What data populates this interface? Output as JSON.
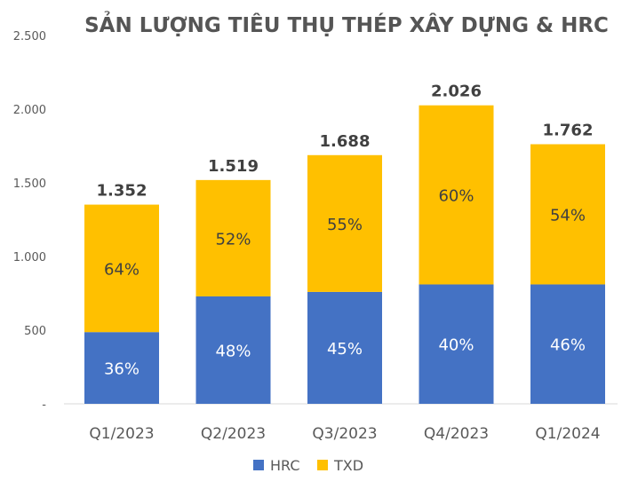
{
  "chart_data": {
    "type": "bar",
    "stacked": true,
    "title": "SẢN LƯỢNG TIÊU THỤ THÉP XÂY DỰNG & HRC",
    "categories": [
      "Q1/2023",
      "Q2/2023",
      "Q3/2023",
      "Q4/2023",
      "Q1/2024"
    ],
    "totals": [
      1352,
      1519,
      1688,
      2026,
      1762
    ],
    "total_labels": [
      "1.352",
      "1.519",
      "1.688",
      "2.026",
      "1.762"
    ],
    "series": [
      {
        "name": "HRC",
        "color": "#4472C4",
        "percent": [
          36,
          48,
          45,
          40,
          46
        ],
        "labels": [
          "36%",
          "48%",
          "45%",
          "40%",
          "46%"
        ]
      },
      {
        "name": "TXD",
        "color": "#FFC000",
        "percent": [
          64,
          52,
          55,
          60,
          54
        ],
        "labels": [
          "64%",
          "52%",
          "55%",
          "60%",
          "54%"
        ]
      }
    ],
    "ylim": [
      0,
      2500
    ],
    "yticks": [
      0,
      500,
      1000,
      1500,
      2000,
      2500
    ],
    "ytick_labels": [
      "-",
      "500",
      "1.000",
      "1.500",
      "2.000",
      "2.500"
    ],
    "grid": false,
    "legend": "bottom"
  }
}
